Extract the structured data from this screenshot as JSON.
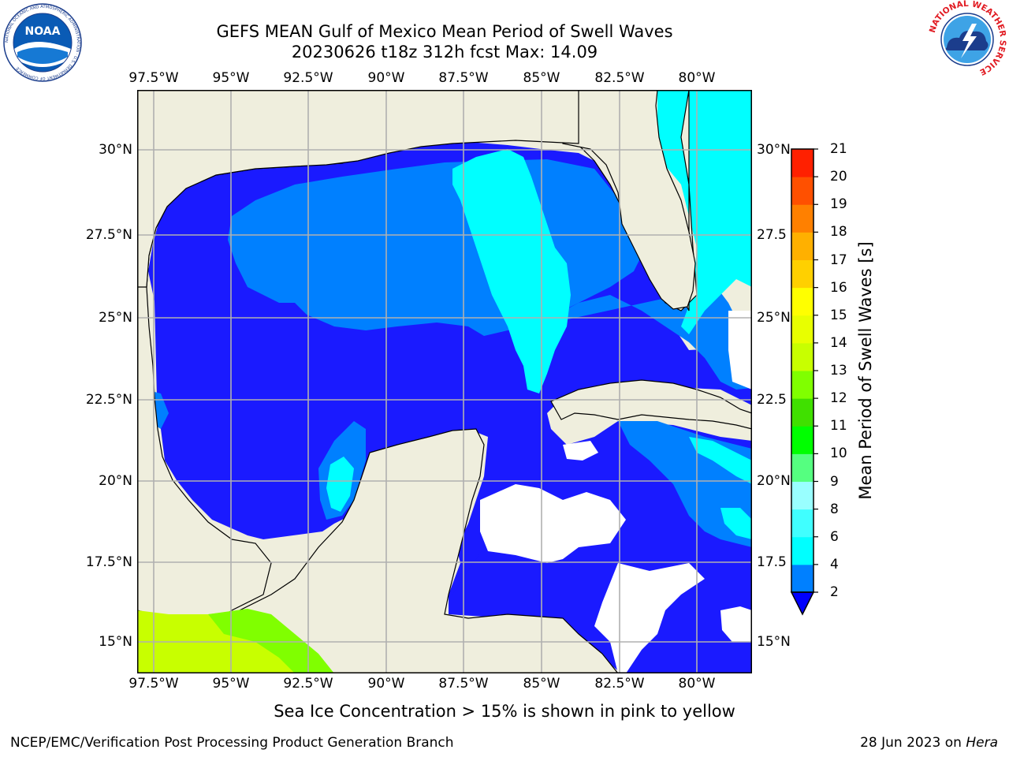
{
  "title": {
    "line1": "GEFS MEAN Gulf of Mexico Mean Period of Swell Waves",
    "line2": "20230626 t18z 312h fcst   Max: 14.09"
  },
  "map": {
    "lon_labels": [
      "97.5°W",
      "95°W",
      "92.5°W",
      "90°W",
      "87.5°W",
      "85°W",
      "82.5°W",
      "80°W"
    ],
    "lat_labels_left": [
      "30°N",
      "27.5°N",
      "25°N",
      "22.5°N",
      "20°N",
      "17.5°N",
      "15°N"
    ],
    "lat_labels_right": [
      "30°N",
      "27.5",
      "25°N",
      "22.5",
      "20°N",
      "17.5",
      "15°N"
    ],
    "colors": {
      "land": "#efeedd",
      "blue_2_4": "#1a1aff",
      "lightblue_4": "#0080ff",
      "cyan_6": "#00ffff",
      "cyan_light": "#33ffff",
      "grid": "#b0b0b0"
    }
  },
  "colorbar": {
    "label": "Mean Period of Swell Waves [s]",
    "ticks": [
      "2",
      "4",
      "6",
      "8",
      "9",
      "10",
      "11",
      "12",
      "13",
      "14",
      "15",
      "16",
      "17",
      "18",
      "19",
      "20",
      "21"
    ],
    "colors": [
      "#0000ff",
      "#0080ff",
      "#00ffff",
      "#40ffff",
      "#99ffff",
      "#55ff80",
      "#00ff00",
      "#40e000",
      "#80ff00",
      "#c8ff00",
      "#e8ff00",
      "#ffff00",
      "#ffd000",
      "#ffb000",
      "#ff8000",
      "#ff5000",
      "#ff2000",
      "#ff0000"
    ]
  },
  "note": "Sea Ice Concentration > 15% is shown in pink to yellow",
  "footer": {
    "left": "NCEP/EMC/Verification Post Processing Product Generation Branch",
    "right_date": "28 Jun 2023 on ",
    "right_host": "Hera"
  },
  "logos": {
    "noaa_text": "NOAA",
    "noaa_ring": "NATIONAL OCEANIC AND ATMOSPHERIC ADMINISTRATION · U.S. DEPARTMENT OF COMMERCE",
    "nws_ring": "NATIONAL WEATHER SERVICE"
  }
}
